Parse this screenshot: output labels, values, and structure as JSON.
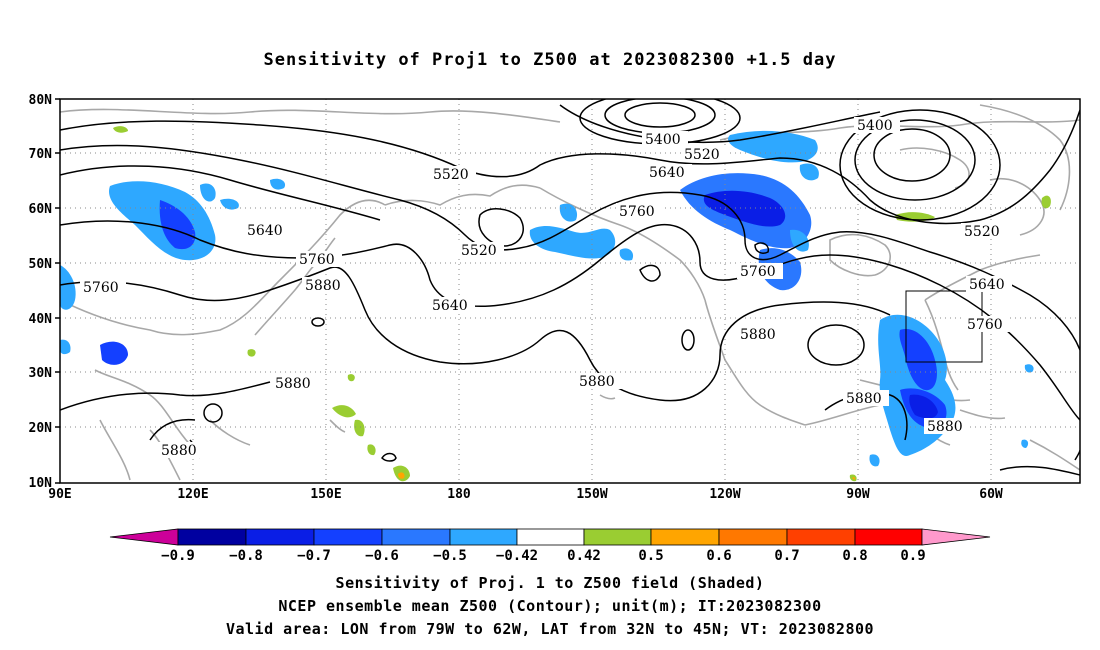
{
  "title": "Sensitivity of Proj1 to Z500 at 2023082300 +1.5 day",
  "map": {
    "lat_labels": [
      "80N",
      "70N",
      "60N",
      "50N",
      "40N",
      "30N",
      "20N",
      "10N"
    ],
    "lon_labels": [
      "90E",
      "120E",
      "150E",
      "180",
      "150W",
      "120W",
      "90W",
      "60W"
    ],
    "contour_labels": [
      {
        "text": "5400",
        "id": "c1"
      },
      {
        "text": "5400",
        "id": "c2"
      },
      {
        "text": "5520",
        "id": "c3"
      },
      {
        "text": "5520",
        "id": "c4"
      },
      {
        "text": "5520",
        "id": "c5"
      },
      {
        "text": "5520",
        "id": "c6"
      },
      {
        "text": "5640",
        "id": "c7"
      },
      {
        "text": "5640",
        "id": "c8"
      },
      {
        "text": "5640",
        "id": "c9"
      },
      {
        "text": "5640",
        "id": "c10"
      },
      {
        "text": "5760",
        "id": "c11"
      },
      {
        "text": "5760",
        "id": "c12"
      },
      {
        "text": "5760",
        "id": "c13"
      },
      {
        "text": "5760",
        "id": "c14"
      },
      {
        "text": "5760",
        "id": "c15"
      },
      {
        "text": "5880",
        "id": "c16"
      },
      {
        "text": "5880",
        "id": "c17"
      },
      {
        "text": "5880",
        "id": "c18"
      },
      {
        "text": "5880",
        "id": "c19"
      },
      {
        "text": "5880",
        "id": "c20"
      },
      {
        "text": "5880",
        "id": "c21"
      },
      {
        "text": "5880",
        "id": "c22"
      }
    ]
  },
  "colorbar": {
    "labels": [
      "−0.9",
      "−0.8",
      "−0.7",
      "−0.6",
      "−0.5",
      "−0.42",
      "0.42",
      "0.5",
      "0.6",
      "0.7",
      "0.8",
      "0.9"
    ],
    "colors": {
      "low_arrow": "#cc0099",
      "neg09": "#0000a0",
      "neg08": "#0a1ee6",
      "neg07": "#1440ff",
      "neg06": "#2a78ff",
      "neg05": "#2ea8ff",
      "neg042": "#00c8ff",
      "white": "#ffffff",
      "pos05": "#9acd32",
      "pos06": "#ffa500",
      "pos07": "#ff7800",
      "pos08": "#ff4000",
      "pos09": "#ff0000",
      "high_arrow": "#ff99cc"
    }
  },
  "captions": {
    "line1": "Sensitivity of Proj. 1 to Z500 field (Shaded)",
    "line2": "NCEP ensemble mean Z500 (Contour); unit(m); IT:2023082300",
    "line3": "Valid area: LON from 79W to 62W, LAT from 32N to 45N; VT: 2023082800"
  }
}
